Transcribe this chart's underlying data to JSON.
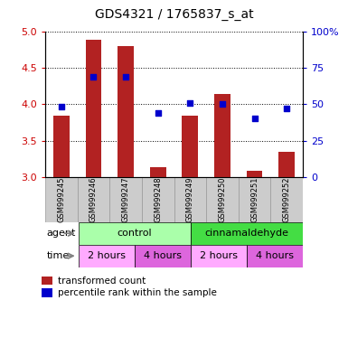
{
  "title": "GDS4321 / 1765837_s_at",
  "samples": [
    "GSM999245",
    "GSM999246",
    "GSM999247",
    "GSM999248",
    "GSM999249",
    "GSM999250",
    "GSM999251",
    "GSM999252"
  ],
  "transformed_counts": [
    3.84,
    4.88,
    4.79,
    3.13,
    3.84,
    4.14,
    3.09,
    3.35
  ],
  "percentile_ranks": [
    48,
    69,
    69,
    44,
    51,
    50,
    40,
    47
  ],
  "ylim_left": [
    3.0,
    5.0
  ],
  "ylim_right": [
    0,
    100
  ],
  "yticks_left": [
    3.0,
    3.5,
    4.0,
    4.5,
    5.0
  ],
  "yticks_right": [
    0,
    25,
    50,
    75,
    100
  ],
  "bar_color": "#b22222",
  "dot_color": "#0000cc",
  "bar_width": 0.5,
  "agent_groups": [
    {
      "label": "control",
      "start": 0,
      "end": 4,
      "color": "#aaffaa"
    },
    {
      "label": "cinnamaldehyde",
      "start": 4,
      "end": 8,
      "color": "#44dd44"
    }
  ],
  "time_groups": [
    {
      "label": "2 hours",
      "start": 0,
      "end": 2,
      "color": "#ffaaff"
    },
    {
      "label": "4 hours",
      "start": 2,
      "end": 4,
      "color": "#dd66dd"
    },
    {
      "label": "2 hours",
      "start": 4,
      "end": 6,
      "color": "#ffaaff"
    },
    {
      "label": "4 hours",
      "start": 6,
      "end": 8,
      "color": "#dd66dd"
    }
  ],
  "legend_red_label": "transformed count",
  "legend_blue_label": "percentile rank within the sample",
  "agent_label": "agent",
  "time_label": "time",
  "left_axis_color": "#cc0000",
  "right_axis_color": "#0000cc",
  "sample_bg_color": "#cccccc",
  "sample_border_color": "#999999"
}
